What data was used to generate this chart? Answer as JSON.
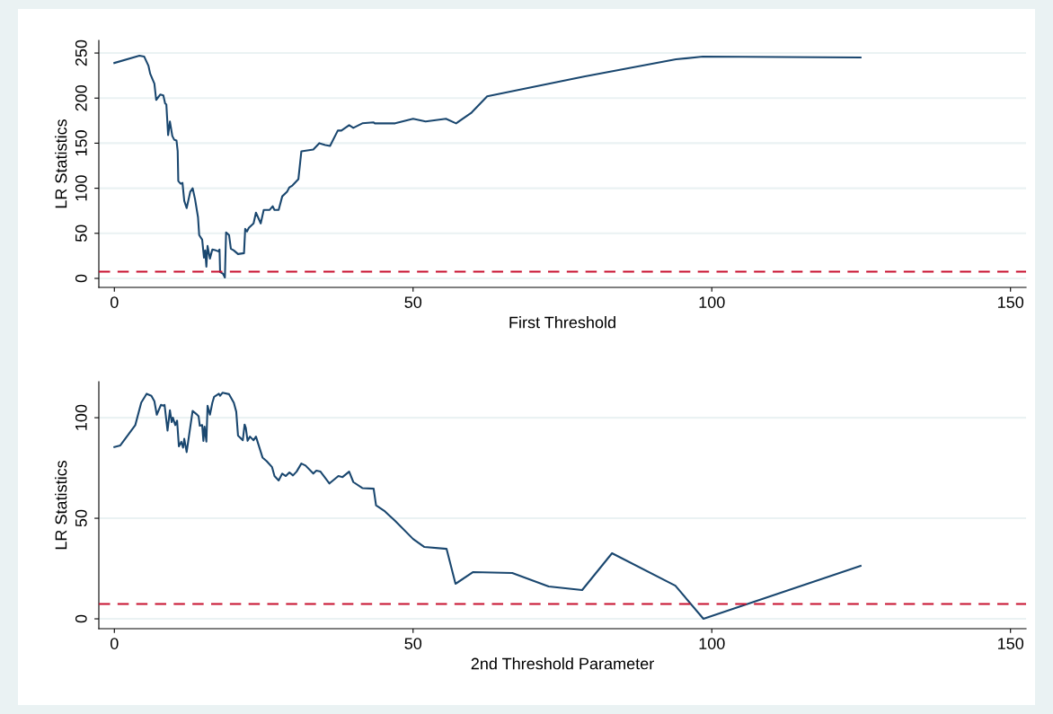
{
  "chart_data": [
    {
      "type": "line",
      "xlabel": "First Threshold",
      "ylabel": "LR Statistics",
      "xlim": [
        -2.6,
        152.6
      ],
      "ylim": [
        -10,
        264
      ],
      "xticks": [
        0,
        50,
        100,
        150
      ],
      "yticks": [
        0,
        50,
        100,
        150,
        200,
        250
      ],
      "grid": "y",
      "legend": false,
      "marker": "none",
      "line_style": "solid",
      "ref_lines": [
        {
          "axis": "y",
          "value": 7.4,
          "label": null,
          "color": "#c8102e",
          "line_style": "dashed"
        }
      ],
      "series": [
        {
          "color": "#1a476f",
          "x": [
            0,
            4.2,
            5.0,
            5.7,
            6.0,
            6.7,
            7.0,
            7.7,
            8.2,
            8.5,
            8.7,
            9.0,
            9.3,
            9.7,
            10.0,
            10.4,
            10.6,
            10.7,
            11.1,
            11.4,
            11.7,
            12.1,
            12.7,
            13.1,
            13.5,
            14.0,
            14.2,
            14.7,
            15.0,
            15.2,
            15.4,
            15.6,
            16.0,
            16.4,
            17.0,
            17.4,
            17.6,
            17.7,
            18.2,
            18.5,
            18.7,
            19.2,
            19.5,
            20.0,
            20.7,
            21.7,
            21.9,
            22.2,
            22.5,
            23.3,
            23.7,
            24.5,
            25.0,
            26.0,
            26.5,
            26.8,
            27.5,
            28.1,
            28.9,
            29.3,
            29.8,
            30.8,
            31.3,
            33.3,
            34.3,
            35.3,
            36.1,
            37.4,
            38.0,
            39.3,
            40.0,
            41.5,
            43.4,
            43.6,
            47.0,
            50.0,
            52.1,
            55.5,
            57.2,
            59.8,
            62.4,
            78.6,
            94.0,
            98.5,
            124.9
          ],
          "values": [
            239,
            247,
            246,
            236,
            227,
            216,
            198,
            204,
            203,
            194,
            193,
            159,
            174,
            158,
            154,
            153,
            141,
            108,
            105,
            106,
            86,
            78,
            96,
            100,
            88,
            68,
            48,
            43,
            23,
            31,
            13,
            36,
            22,
            32,
            31,
            30,
            32,
            7,
            5,
            1,
            51,
            48,
            33,
            31,
            27,
            28,
            55,
            52,
            56,
            61,
            73,
            61,
            76,
            76,
            80,
            76,
            76,
            91,
            96,
            101,
            103,
            110,
            141,
            143,
            150,
            148,
            147,
            164,
            164,
            170,
            167,
            172,
            173,
            172,
            172,
            177,
            174,
            177,
            172,
            184,
            202,
            224,
            243,
            246,
            245
          ]
        }
      ]
    },
    {
      "type": "line",
      "xlabel": "2nd Threshold Parameter",
      "ylabel": "LR Statistics",
      "xlim": [
        -2.6,
        152.6
      ],
      "ylim": [
        -4.9,
        117.9
      ],
      "xticks": [
        0,
        50,
        100,
        150
      ],
      "yticks": [
        0,
        50,
        100
      ],
      "grid": "y",
      "legend": false,
      "marker": "none",
      "line_style": "solid",
      "ref_lines": [
        {
          "axis": "y",
          "value": 7.4,
          "label": null,
          "color": "#c8102e",
          "line_style": "dashed"
        }
      ],
      "series": [
        {
          "color": "#1a476f",
          "x": [
            0,
            1.0,
            3.5,
            4.5,
            5.4,
            6.2,
            6.7,
            7.1,
            7.8,
            8.2,
            8.4,
            8.9,
            9.3,
            9.6,
            9.8,
            10.2,
            10.5,
            10.8,
            11.2,
            11.5,
            11.7,
            12.1,
            12.5,
            13.1,
            13.7,
            14.1,
            14.3,
            14.7,
            14.9,
            15.1,
            15.4,
            15.6,
            16.0,
            16.4,
            16.7,
            17.5,
            17.7,
            18.1,
            19.2,
            20.0,
            20.4,
            20.7,
            21.5,
            21.8,
            22.0,
            22.3,
            22.7,
            23.3,
            23.7,
            24.8,
            25.5,
            26.4,
            26.8,
            27.5,
            28.1,
            28.7,
            29.3,
            29.9,
            30.5,
            31.3,
            32.0,
            33.3,
            33.8,
            34.5,
            36.0,
            37.5,
            38.2,
            39.3,
            40.0,
            41.5,
            43.4,
            43.8,
            45.3,
            47.0,
            50.0,
            51.9,
            55.6,
            57.1,
            60.0,
            66.6,
            72.7,
            78.3,
            83.3,
            93.9,
            98.6,
            124.9
          ],
          "values": [
            85.4,
            86.2,
            96.3,
            107.5,
            111.9,
            110.9,
            108.2,
            101.5,
            106.4,
            106,
            106.4,
            93.6,
            103.7,
            97.8,
            100,
            96.3,
            98.5,
            85.8,
            88,
            85.1,
            89.5,
            82.9,
            91.1,
            103.4,
            101.9,
            100.7,
            96,
            96.3,
            88.5,
            95.5,
            88.1,
            105.9,
            101.5,
            107.4,
            110.4,
            111.9,
            110.9,
            112.4,
            111.7,
            107.4,
            103,
            91.1,
            88.8,
            96.6,
            95,
            88.5,
            90.6,
            88.8,
            90.6,
            80.2,
            78.4,
            75.4,
            71,
            68.8,
            72.2,
            71,
            72.8,
            71.3,
            73.2,
            77.2,
            76.2,
            72.2,
            73.7,
            73.2,
            67.3,
            71,
            70.5,
            73.2,
            68,
            65,
            64.7,
            56.4,
            53.4,
            48.7,
            39.7,
            35.7,
            34.8,
            17.4,
            23.2,
            22.8,
            16.1,
            14.3,
            32.6,
            16.5,
            0,
            26.3
          ]
        }
      ]
    }
  ]
}
